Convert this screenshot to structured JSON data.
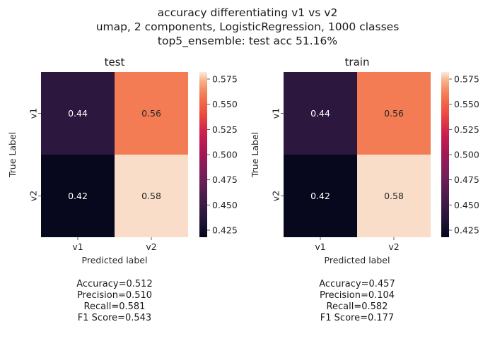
{
  "suptitle": [
    "accuracy differentiating v1 vs v2",
    "umap, 2 components, LogisticRegression, 1000 classes",
    "top5_ensemble: test acc 51.16%"
  ],
  "chart_data": [
    {
      "type": "heatmap",
      "title": "test",
      "xlabel": "Predicted label",
      "ylabel": "True Label",
      "x_categories": [
        "v1",
        "v2"
      ],
      "y_categories": [
        "v1",
        "v2"
      ],
      "values": [
        [
          0.44,
          0.56
        ],
        [
          0.42,
          0.58
        ]
      ],
      "annotations": [
        [
          "0.44",
          "0.56"
        ],
        [
          "0.42",
          "0.58"
        ]
      ],
      "colorbar": {
        "range": [
          0.418,
          0.582
        ],
        "ticks": [
          0.425,
          0.45,
          0.475,
          0.5,
          0.525,
          0.55,
          0.575
        ],
        "tick_labels": [
          "0.425",
          "0.450",
          "0.475",
          "0.500",
          "0.525",
          "0.550",
          "0.575"
        ],
        "colormap": "rocket"
      },
      "metrics": [
        "Accuracy=0.512",
        "Precision=0.510",
        "Recall=0.581",
        "F1 Score=0.543"
      ]
    },
    {
      "type": "heatmap",
      "title": "train",
      "xlabel": "Predicted label",
      "ylabel": "True Label",
      "x_categories": [
        "v1",
        "v2"
      ],
      "y_categories": [
        "v1",
        "v2"
      ],
      "values": [
        [
          0.44,
          0.56
        ],
        [
          0.42,
          0.58
        ]
      ],
      "annotations": [
        [
          "0.44",
          "0.56"
        ],
        [
          "0.42",
          "0.58"
        ]
      ],
      "colorbar": {
        "range": [
          0.418,
          0.582
        ],
        "ticks": [
          0.425,
          0.45,
          0.475,
          0.5,
          0.525,
          0.55,
          0.575
        ],
        "tick_labels": [
          "0.425",
          "0.450",
          "0.475",
          "0.500",
          "0.525",
          "0.550",
          "0.575"
        ],
        "colormap": "rocket"
      },
      "metrics": [
        "Accuracy=0.457",
        "Precision=0.104",
        "Recall=0.582",
        "F1 Score=0.177"
      ]
    }
  ]
}
